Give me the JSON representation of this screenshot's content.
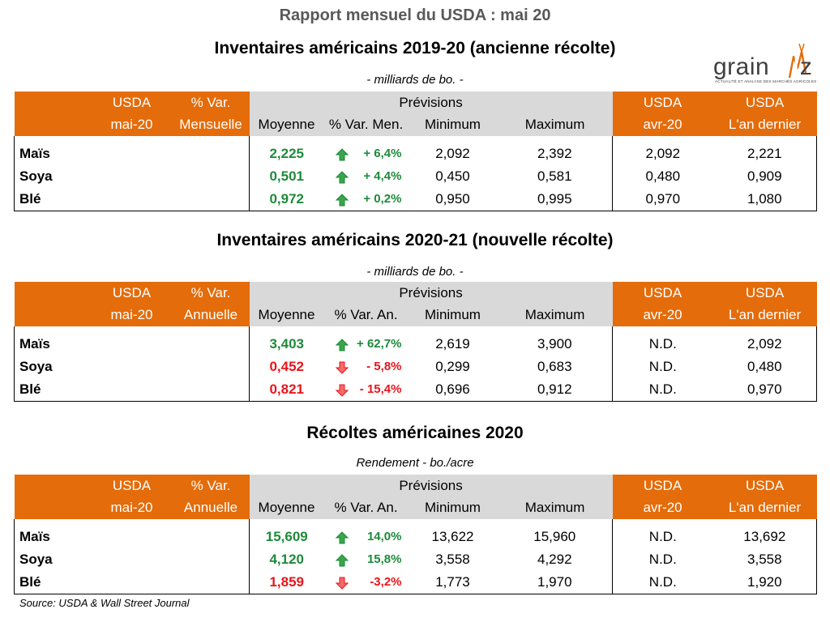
{
  "header": {
    "title": "Rapport mensuel du USDA : mai 20",
    "logo_text": "grainwiz",
    "logo_tagline": "ACTUALITÉ ET ANALYSE DES MARCHÉS AGRICOLES"
  },
  "colors": {
    "orange": "#e46c0a",
    "grey": "#d9d9d9",
    "up": "#1e8a3a",
    "down": "#e8141b"
  },
  "sections": [
    {
      "title": "Inventaires américains 2019-20 (ancienne récolte)",
      "unit": "- milliards de bo.  -",
      "head": {
        "usda": "USDA",
        "date": "mai-20",
        "var_top": "% Var.",
        "var_bottom": "Mensuelle",
        "previsions": "Prévisions",
        "moyenne": "Moyenne",
        "var_men": "% Var. Men.",
        "minimum": "Minimum",
        "maximum": "Maximum",
        "usda2": "USDA",
        "prev": "avr-20",
        "usda3": "USDA",
        "last": "L'an dernier"
      },
      "rows": [
        {
          "product": "Maïs",
          "moyenne": "2,225",
          "dir": "up",
          "var": "+ 6,4%",
          "min": "2,092",
          "max": "2,392",
          "prev": "2,092",
          "last": "2,221"
        },
        {
          "product": "Soya",
          "moyenne": "0,501",
          "dir": "up",
          "var": "+ 4,4%",
          "min": "0,450",
          "max": "0,581",
          "prev": "0,480",
          "last": "0,909"
        },
        {
          "product": "Blé",
          "moyenne": "0,972",
          "dir": "up",
          "var": "+ 0,2%",
          "min": "0,950",
          "max": "0,995",
          "prev": "0,970",
          "last": "1,080"
        }
      ]
    },
    {
      "title": "Inventaires américains 2020-21 (nouvelle récolte)",
      "unit": "- milliards de bo.  -",
      "head": {
        "usda": "USDA",
        "date": "mai-20",
        "var_top": "% Var.",
        "var_bottom": "Annuelle",
        "previsions": "Prévisions",
        "moyenne": "Moyenne",
        "var_men": "% Var. An.",
        "minimum": "Minimum",
        "maximum": "Maximum",
        "usda2": "USDA",
        "prev": "avr-20",
        "usda3": "USDA",
        "last": "L'an dernier"
      },
      "rows": [
        {
          "product": "Maïs",
          "moyenne": "3,403",
          "dir": "up",
          "var": "+ 62,7%",
          "min": "2,619",
          "max": "3,900",
          "prev": "N.D.",
          "last": "2,092"
        },
        {
          "product": "Soya",
          "moyenne": "0,452",
          "dir": "down",
          "var": "- 5,8%",
          "min": "0,299",
          "max": "0,683",
          "prev": "N.D.",
          "last": "0,480"
        },
        {
          "product": "Blé",
          "moyenne": "0,821",
          "dir": "down",
          "var": "- 15,4%",
          "min": "0,696",
          "max": "0,912",
          "prev": "N.D.",
          "last": "0,970"
        }
      ]
    },
    {
      "title": "Récoltes américaines 2020",
      "unit": "Rendement - bo./acre",
      "head": {
        "usda": "USDA",
        "date": "mai-20",
        "var_top": "% Var.",
        "var_bottom": "Annuelle",
        "previsions": "Prévisions",
        "moyenne": "Moyenne",
        "var_men": "% Var. An.",
        "minimum": "Minimum",
        "maximum": "Maximum",
        "usda2": "USDA",
        "prev": "avr-20",
        "usda3": "USDA",
        "last": "L'an dernier"
      },
      "rows": [
        {
          "product": "Maïs",
          "moyenne": "15,609",
          "dir": "up",
          "var": "14,0%",
          "min": "13,622",
          "max": "15,960",
          "prev": "N.D.",
          "last": "13,692"
        },
        {
          "product": "Soya",
          "moyenne": "4,120",
          "dir": "up",
          "var": "15,8%",
          "min": "3,558",
          "max": "4,292",
          "prev": "N.D.",
          "last": "3,558"
        },
        {
          "product": "Blé",
          "moyenne": "1,859",
          "dir": "down",
          "var": "-3,2%",
          "min": "1,773",
          "max": "1,970",
          "prev": "N.D.",
          "last": "1,920"
        }
      ]
    }
  ],
  "footer": {
    "source": "Source: USDA & Wall Street Journal"
  }
}
